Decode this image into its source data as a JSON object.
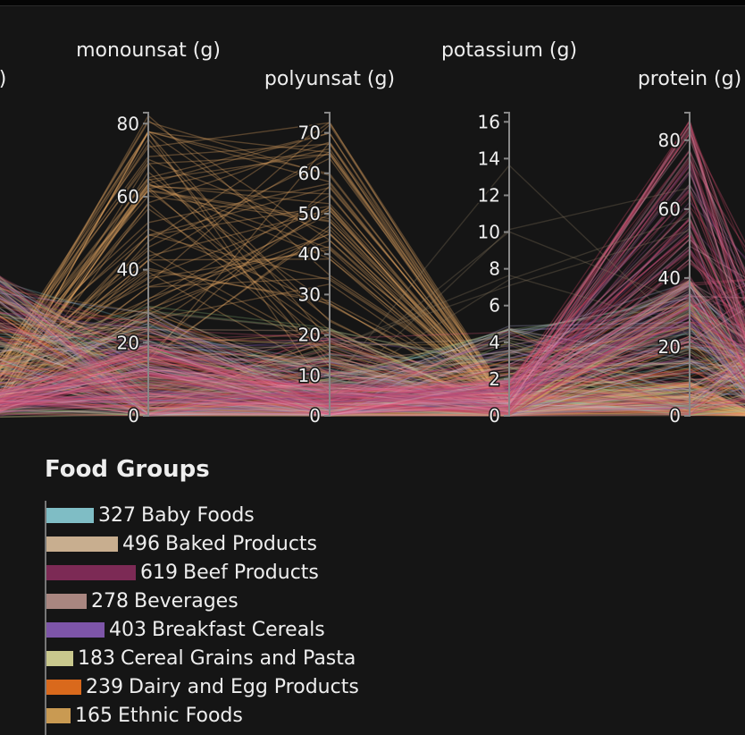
{
  "chart_data": {
    "type": "parallel-coordinates",
    "dimensions": [
      {
        "name": "monounsat (g)",
        "ticks": [
          0,
          20,
          40,
          60,
          80
        ],
        "range": [
          0,
          83
        ]
      },
      {
        "name": "polyunsat (g)",
        "ticks": [
          0,
          10,
          20,
          30,
          40,
          50,
          60,
          70
        ],
        "range": [
          0,
          75
        ]
      },
      {
        "name": "potassium (g)",
        "ticks": [
          0,
          2,
          4,
          6,
          8,
          10,
          12,
          14,
          16
        ],
        "range": [
          0,
          16.5
        ]
      },
      {
        "name": "protein (g)",
        "ticks": [
          0,
          20,
          40,
          60,
          80
        ],
        "range": [
          0,
          88
        ]
      }
    ],
    "partial_label": ")",
    "legend": {
      "title": "Food Groups",
      "items": [
        {
          "count": 327,
          "label": "Baby Foods",
          "color": "#7fbdc5"
        },
        {
          "count": 496,
          "label": "Baked Products",
          "color": "#c8ae8f"
        },
        {
          "count": 619,
          "label": "Beef Products",
          "color": "#7c2a55"
        },
        {
          "count": 278,
          "label": "Beverages",
          "color": "#a98680"
        },
        {
          "count": 403,
          "label": "Breakfast Cereals",
          "color": "#7d55a8"
        },
        {
          "count": 183,
          "label": "Cereal Grains and Pasta",
          "color": "#c9c88d"
        },
        {
          "count": 239,
          "label": "Dairy and Egg Products",
          "color": "#d9691c"
        },
        {
          "count": 165,
          "label": "Ethnic Foods",
          "color": "#c99a52"
        }
      ]
    }
  }
}
